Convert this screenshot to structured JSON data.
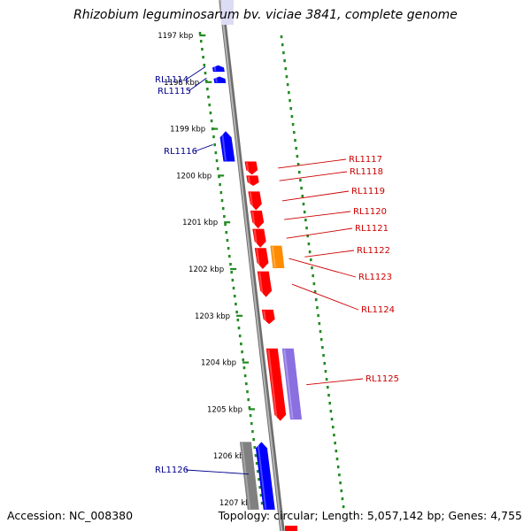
{
  "title": "Rhizobium leguminosarum bv. viciae 3841, complete genome",
  "footer": {
    "accession": "Accession: NC_008380",
    "summary": "Topology: circular; Length: 5,057,142 bp; Genes: 4,755"
  },
  "colors": {
    "forward_strand": "#0000ff",
    "reverse_strand": "#ff0000",
    "other_feature": "#ff8c00",
    "rna_feature": "#8a6fe0",
    "pseudo_feature": "#808080",
    "ruler_dots": "#228b22",
    "backbone": "#8c8c8c"
  },
  "ticks": [
    {
      "label": "1197 kbp",
      "kbp": 1197
    },
    {
      "label": "1198 kbp",
      "kbp": 1198
    },
    {
      "label": "1199 kbp",
      "kbp": 1199
    },
    {
      "label": "1200 kbp",
      "kbp": 1200
    },
    {
      "label": "1201 kbp",
      "kbp": 1201
    },
    {
      "label": "1202 kbp",
      "kbp": 1202
    },
    {
      "label": "1203 kbp",
      "kbp": 1203
    },
    {
      "label": "1204 kbp",
      "kbp": 1204
    },
    {
      "label": "1205 kbp",
      "kbp": 1205
    },
    {
      "label": "1206 kbp",
      "kbp": 1206
    },
    {
      "label": "1207 kbp",
      "kbp": 1207
    }
  ],
  "genes": [
    {
      "label": "RL1114",
      "strand": "+",
      "start": 1197.64,
      "end": 1197.78,
      "track": 0,
      "type": "cds"
    },
    {
      "label": "RL1115",
      "strand": "+",
      "start": 1197.88,
      "end": 1198.02,
      "track": 0,
      "type": "cds"
    },
    {
      "label": "RL1116",
      "strand": "+",
      "start": 1199.05,
      "end": 1199.7,
      "track": 0,
      "type": "cds"
    },
    {
      "label": "RL1117",
      "strand": "-",
      "start": 1199.7,
      "end": 1199.98,
      "track": 0,
      "type": "cds"
    },
    {
      "label": "RL1118",
      "strand": "-",
      "start": 1200.0,
      "end": 1200.22,
      "track": 0,
      "type": "cds"
    },
    {
      "label": "RL1119",
      "strand": "-",
      "start": 1200.34,
      "end": 1200.74,
      "track": 0,
      "type": "cds"
    },
    {
      "label": "RL1120",
      "strand": "-",
      "start": 1200.75,
      "end": 1201.13,
      "track": 0,
      "type": "cds"
    },
    {
      "label": "RL1121",
      "strand": "-",
      "start": 1201.14,
      "end": 1201.54,
      "track": 0,
      "type": "cds"
    },
    {
      "label": "RL1122",
      "strand": "-",
      "start": 1201.5,
      "end": 1201.98,
      "track": 1,
      "type": "other"
    },
    {
      "label": "RL1123",
      "strand": "-",
      "start": 1201.55,
      "end": 1202.0,
      "track": 0,
      "type": "cds"
    },
    {
      "label": "RL1124",
      "strand": "-",
      "start": 1202.05,
      "end": 1202.6,
      "track": 0,
      "type": "cds"
    },
    {
      "label": "",
      "strand": "-",
      "start": 1202.87,
      "end": 1203.18,
      "track": 0,
      "type": "cds"
    },
    {
      "label": "RL1125",
      "strand": "-",
      "start": 1203.7,
      "end": 1205.25,
      "track": 0,
      "type": "cds"
    },
    {
      "label": "",
      "strand": "-",
      "start": 1203.7,
      "end": 1205.22,
      "track": 1,
      "type": "rna"
    },
    {
      "label": "",
      "strand": "+",
      "start": 1205.7,
      "end": 1207.15,
      "track": 1,
      "type": "pseudo"
    },
    {
      "label": "RL1126",
      "strand": "+",
      "start": 1205.7,
      "end": 1207.15,
      "track": 0,
      "type": "cds"
    }
  ]
}
